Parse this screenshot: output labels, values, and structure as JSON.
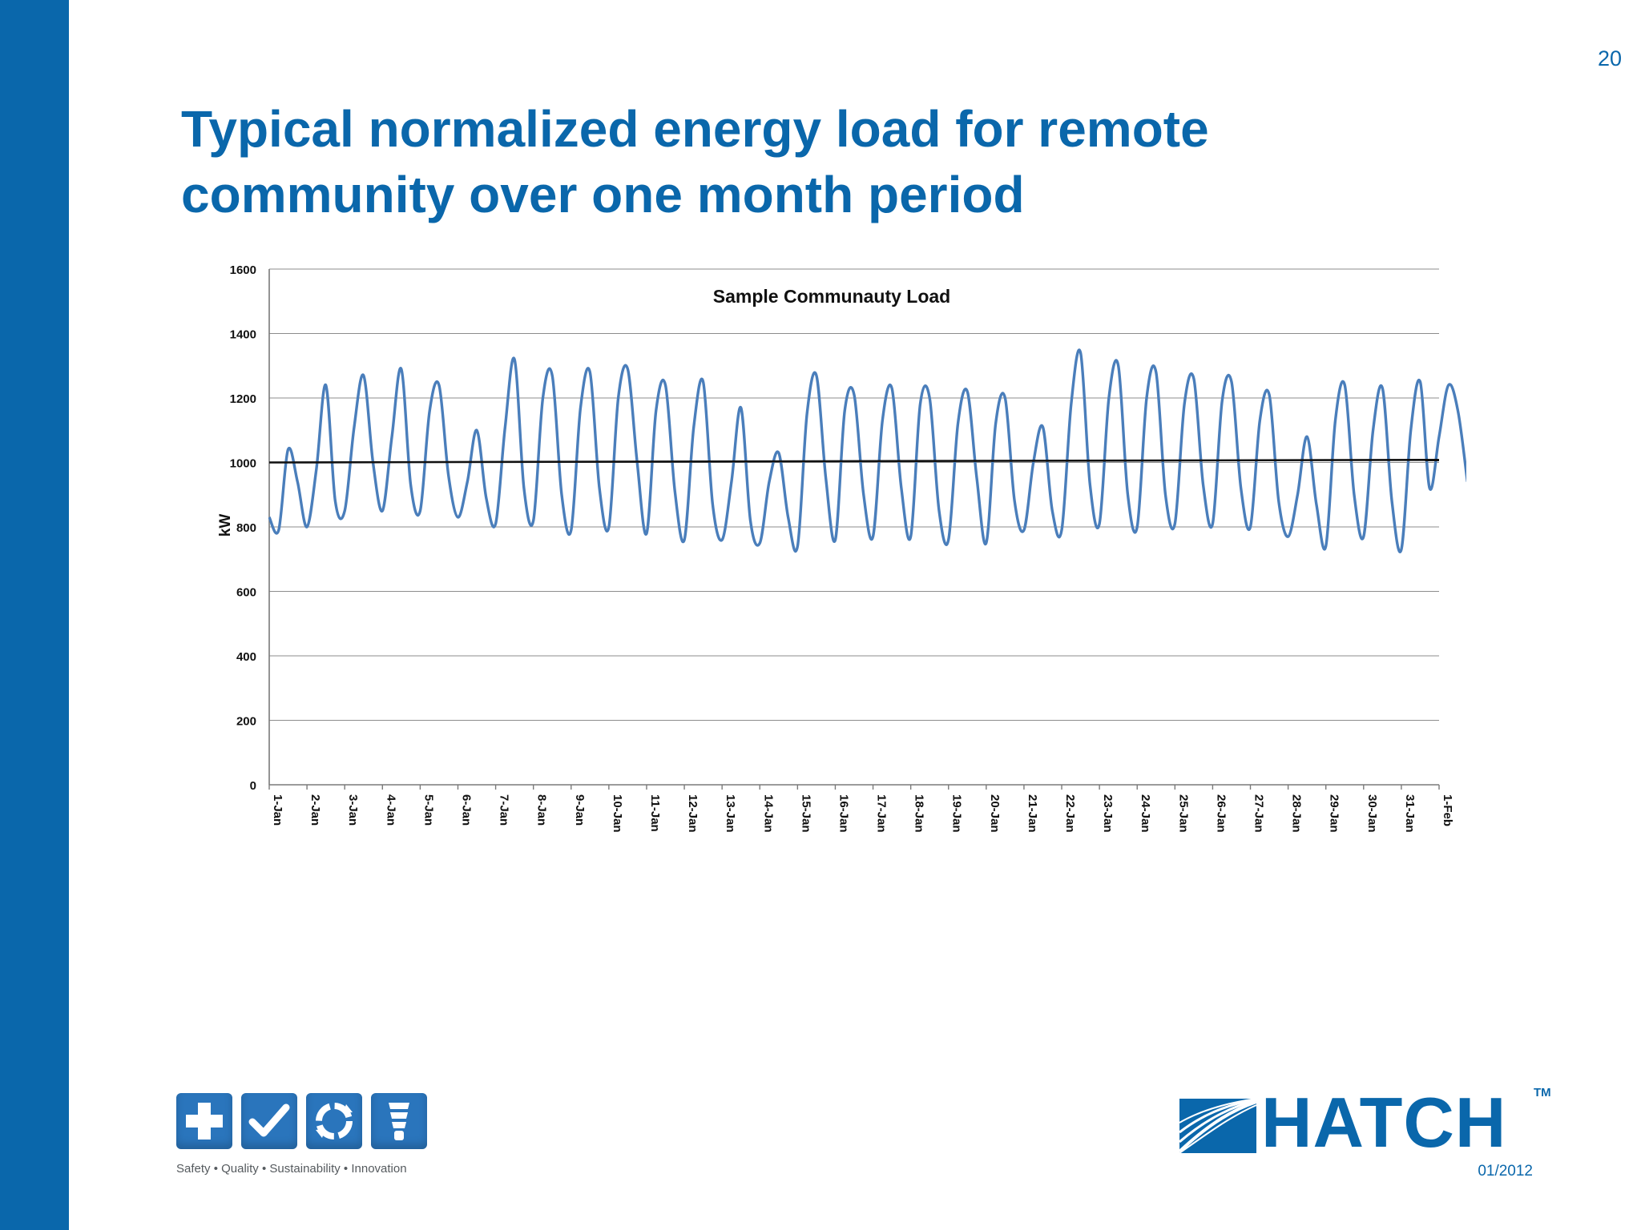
{
  "slide": {
    "page_number": "20",
    "title": "Typical normalized energy load for remote community over one month period",
    "date_code": "01/2012"
  },
  "values_bar": {
    "caption": "Safety • Quality • Sustainability • Innovation",
    "icons": [
      "plus-icon",
      "check-icon",
      "recycle-icon",
      "lightbulb-icon"
    ]
  },
  "brand": {
    "name": "HATCH",
    "tm": "TM",
    "color": "#0a67ab"
  },
  "chart_data": {
    "type": "line",
    "title": "Sample Communauty  Load",
    "ylabel": "kW",
    "xlabel": "",
    "ylim": [
      0,
      1600
    ],
    "yticks": [
      0,
      200,
      400,
      600,
      800,
      1000,
      1200,
      1400,
      1600
    ],
    "grid": true,
    "legend": "none",
    "x_tick_labels": [
      "1-Jan",
      "2-Jan",
      "3-Jan",
      "4-Jan",
      "5-Jan",
      "6-Jan",
      "7-Jan",
      "8-Jan",
      "9-Jan",
      "10-Jan",
      "11-Jan",
      "12-Jan",
      "13-Jan",
      "14-Jan",
      "15-Jan",
      "16-Jan",
      "17-Jan",
      "18-Jan",
      "19-Jan",
      "20-Jan",
      "21-Jan",
      "22-Jan",
      "23-Jan",
      "24-Jan",
      "25-Jan",
      "26-Jan",
      "27-Jan",
      "28-Jan",
      "29-Jan",
      "30-Jan",
      "31-Jan",
      "1-Feb"
    ],
    "series": [
      {
        "color": "#4a7ebb",
        "x_day_index_step": 0.25,
        "values": [
          830,
          790,
          1040,
          940,
          800,
          980,
          1240,
          880,
          850,
          1110,
          1270,
          1000,
          850,
          1080,
          1290,
          930,
          850,
          1160,
          1240,
          960,
          830,
          940,
          1100,
          890,
          810,
          1110,
          1320,
          920,
          820,
          1200,
          1270,
          900,
          790,
          1170,
          1280,
          920,
          800,
          1200,
          1290,
          1000,
          780,
          1160,
          1240,
          910,
          760,
          1110,
          1250,
          870,
          760,
          940,
          1170,
          820,
          750,
          940,
          1030,
          830,
          740,
          1150,
          1270,
          950,
          760,
          1160,
          1210,
          900,
          770,
          1130,
          1230,
          920,
          770,
          1180,
          1200,
          850,
          760,
          1120,
          1220,
          950,
          750,
          1120,
          1200,
          880,
          790,
          1000,
          1110,
          850,
          790,
          1180,
          1340,
          930,
          810,
          1200,
          1300,
          900,
          800,
          1200,
          1280,
          900,
          810,
          1180,
          1260,
          930,
          810,
          1190,
          1250,
          920,
          800,
          1130,
          1210,
          880,
          770,
          900,
          1080,
          870,
          740,
          1130,
          1240,
          900,
          770,
          1100,
          1230,
          880,
          730,
          1100,
          1250,
          920,
          1080,
          1240,
          1160,
          940
        ]
      },
      {
        "color": "#111111",
        "x": [
          0,
          31
        ],
        "values": [
          1000,
          1008
        ]
      }
    ]
  }
}
